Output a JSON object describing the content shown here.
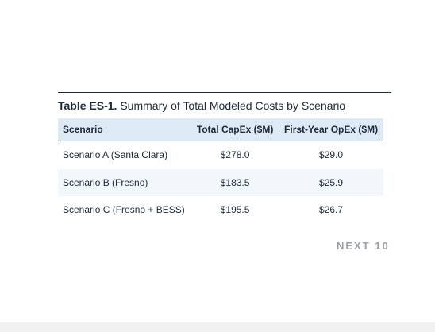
{
  "table": {
    "caption_label": "Table ES-1.",
    "caption_text": "Summary of Total Modeled Costs by Scenario",
    "headers": [
      "Scenario",
      "Total CapEx ($M)",
      "First-Year OpEx ($M)"
    ],
    "rows": [
      [
        "Scenario A (Santa Clara)",
        "$278.0",
        "$29.0"
      ],
      [
        "Scenario B (Fresno)",
        "$183.5",
        "$25.9"
      ],
      [
        "Scenario C (Fresno + BESS)",
        "$195.5",
        "$26.7"
      ]
    ]
  },
  "logo": {
    "text": "NEXT 10"
  },
  "colors": {
    "header_fill": "#dde9f3",
    "alt_row_fill": "#f2f7fb",
    "rule": "#1e2a3a",
    "logo_gray": "#9aa0a6"
  }
}
